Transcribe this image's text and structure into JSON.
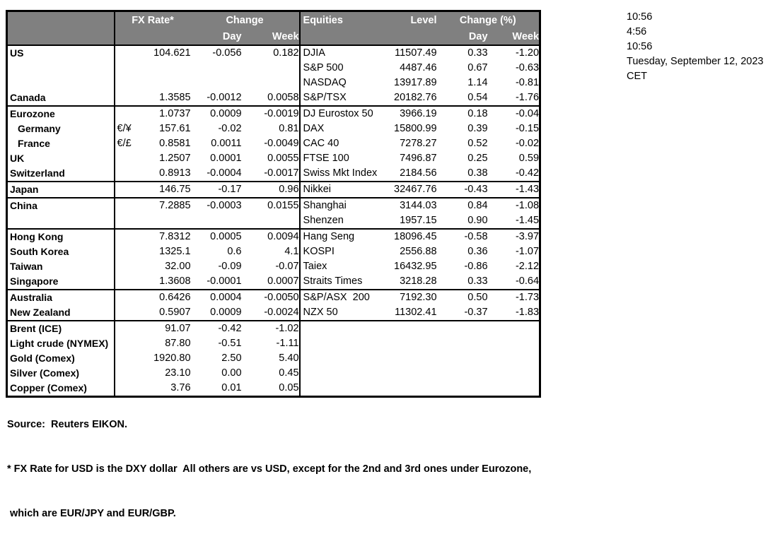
{
  "table": {
    "header": {
      "fx_rate": "FX Rate*",
      "change": "Change",
      "day": "Day",
      "week": "Week",
      "equities": "Equities",
      "level": "Level",
      "change_pct": "Change (%)",
      "day2": "Day",
      "week2": "Week"
    },
    "rows": [
      {
        "top": false,
        "indent": false,
        "name": "US",
        "sym": "",
        "rate": "104.621",
        "day": "-0.056",
        "week": "0.182",
        "equity": "DJIA",
        "level": "11507.49",
        "eq_day": "0.33",
        "eq_week": "-1.20"
      },
      {
        "top": false,
        "indent": false,
        "name": "",
        "sym": "",
        "rate": "",
        "day": "",
        "week": "",
        "equity": "S&P 500",
        "level": "4487.46",
        "eq_day": "0.67",
        "eq_week": "-0.63"
      },
      {
        "top": false,
        "indent": false,
        "name": "",
        "sym": "",
        "rate": "",
        "day": "",
        "week": "",
        "equity": "NASDAQ",
        "level": "13917.89",
        "eq_day": "1.14",
        "eq_week": "-0.81"
      },
      {
        "top": false,
        "indent": false,
        "name": "Canada",
        "sym": "",
        "rate": "1.3585",
        "day": "-0.0012",
        "week": "0.0058",
        "equity": "S&P/TSX",
        "level": "20182.76",
        "eq_day": "0.54",
        "eq_week": "-1.76"
      },
      {
        "top": true,
        "indent": false,
        "name": "Eurozone",
        "sym": "",
        "rate": "1.0737",
        "day": "0.0009",
        "week": "-0.0019",
        "equity": "DJ Eurostox 50",
        "level": "3966.19",
        "eq_day": "0.18",
        "eq_week": "-0.04"
      },
      {
        "top": false,
        "indent": true,
        "name": "Germany",
        "sym": "€/¥",
        "rate": "157.61",
        "day": "-0.02",
        "week": "0.81",
        "equity": "DAX",
        "level": "15800.99",
        "eq_day": "0.39",
        "eq_week": "-0.15"
      },
      {
        "top": false,
        "indent": true,
        "name": "France",
        "sym": "€/£",
        "rate": "0.8581",
        "day": "0.0011",
        "week": "-0.0049",
        "equity": "CAC 40",
        "level": "7278.27",
        "eq_day": "0.52",
        "eq_week": "-0.02"
      },
      {
        "top": false,
        "indent": false,
        "name": "UK",
        "sym": "",
        "rate": "1.2507",
        "day": "0.0001",
        "week": "0.0055",
        "equity": "FTSE 100",
        "level": "7496.87",
        "eq_day": "0.25",
        "eq_week": "0.59"
      },
      {
        "top": false,
        "indent": false,
        "name": "Switzerland",
        "sym": "",
        "rate": "0.8913",
        "day": "-0.0004",
        "week": "-0.0017",
        "equity": "Swiss Mkt Index",
        "level": "2184.56",
        "eq_day": "0.38",
        "eq_week": "-0.42"
      },
      {
        "top": true,
        "indent": false,
        "name": "Japan",
        "sym": "",
        "rate": "146.75",
        "day": "-0.17",
        "week": "0.96",
        "equity": "Nikkei",
        "level": "32467.76",
        "eq_day": "-0.43",
        "eq_week": "-1.43"
      },
      {
        "top": true,
        "indent": false,
        "name": "China",
        "sym": "",
        "rate": "7.2885",
        "day": "-0.0003",
        "week": "0.0155",
        "equity": "Shanghai",
        "level": "3144.03",
        "eq_day": "0.84",
        "eq_week": "-1.08"
      },
      {
        "top": false,
        "indent": false,
        "name": "",
        "sym": "",
        "rate": "",
        "day": "",
        "week": "",
        "equity": "Shenzen",
        "level": "1957.15",
        "eq_day": "0.90",
        "eq_week": "-1.45"
      },
      {
        "top": true,
        "indent": false,
        "name": "Hong Kong",
        "sym": "",
        "rate": "7.8312",
        "day": "0.0005",
        "week": "0.0094",
        "equity": "Hang Seng",
        "level": "18096.45",
        "eq_day": "-0.58",
        "eq_week": "-3.97"
      },
      {
        "top": false,
        "indent": false,
        "name": "South Korea",
        "sym": "",
        "rate": "1325.1",
        "day": "0.6",
        "week": "4.1",
        "equity": "KOSPI",
        "level": "2556.88",
        "eq_day": "0.36",
        "eq_week": "-1.07"
      },
      {
        "top": false,
        "indent": false,
        "name": "Taiwan",
        "sym": "",
        "rate": "32.00",
        "day": "-0.09",
        "week": "-0.07",
        "equity": "Taiex",
        "level": "16432.95",
        "eq_day": "-0.86",
        "eq_week": "-2.12"
      },
      {
        "top": false,
        "indent": false,
        "name": "Singapore",
        "sym": "",
        "rate": "1.3608",
        "day": "-0.0001",
        "week": "0.0007",
        "equity": "Straits Times",
        "level": "3218.28",
        "eq_day": "0.33",
        "eq_week": "-0.64"
      },
      {
        "top": true,
        "indent": false,
        "name": "Australia",
        "sym": "",
        "rate": "0.6426",
        "day": "0.0004",
        "week": "-0.0050",
        "equity": "S&P/ASX  200",
        "level": "7192.30",
        "eq_day": "0.50",
        "eq_week": "-1.73"
      },
      {
        "top": false,
        "indent": false,
        "name": "New Zealand",
        "sym": "",
        "rate": "0.5907",
        "day": "0.0009",
        "week": "-0.0024",
        "equity": "NZX 50",
        "level": "11302.41",
        "eq_day": "-0.37",
        "eq_week": "-1.83"
      },
      {
        "top": true,
        "indent": false,
        "name": "Brent (ICE)",
        "sym": "",
        "rate": "91.07",
        "day": "-0.42",
        "week": "-1.02",
        "equity": "",
        "level": "",
        "eq_day": "",
        "eq_week": ""
      },
      {
        "top": false,
        "indent": false,
        "name": "Light crude (NYMEX)",
        "sym": "",
        "rate": "87.80",
        "day": "-0.51",
        "week": "-1.11",
        "equity": "",
        "level": "",
        "eq_day": "",
        "eq_week": ""
      },
      {
        "top": false,
        "indent": false,
        "name": "Gold (Comex)",
        "sym": "",
        "rate": "1920.80",
        "day": "2.50",
        "week": "5.40",
        "equity": "",
        "level": "",
        "eq_day": "",
        "eq_week": ""
      },
      {
        "top": false,
        "indent": false,
        "name": "Silver (Comex)",
        "sym": "",
        "rate": "23.10",
        "day": "0.00",
        "week": "0.45",
        "equity": "",
        "level": "",
        "eq_day": "",
        "eq_week": ""
      },
      {
        "top": false,
        "indent": false,
        "name": "Copper (Comex)",
        "sym": "",
        "rate": "3.76",
        "day": "0.01",
        "week": "0.05",
        "equity": "",
        "level": "",
        "eq_day": "",
        "eq_week": ""
      }
    ]
  },
  "timestamps": {
    "lines": [
      "10:56",
      "4:56",
      "10:56",
      "Tuesday, September 12, 2023",
      "CET"
    ]
  },
  "footer": {
    "source": "Source:  Reuters EIKON.",
    "note1": "* FX Rate for USD is the DXY dollar  All others are vs USD, except for the 2nd and 3rd ones under Eurozone,",
    "note2": " which are EUR/JPY and EUR/GBP."
  },
  "colors": {
    "header_bg": "#808080",
    "header_text": "#ffffff",
    "border": "#000000"
  }
}
